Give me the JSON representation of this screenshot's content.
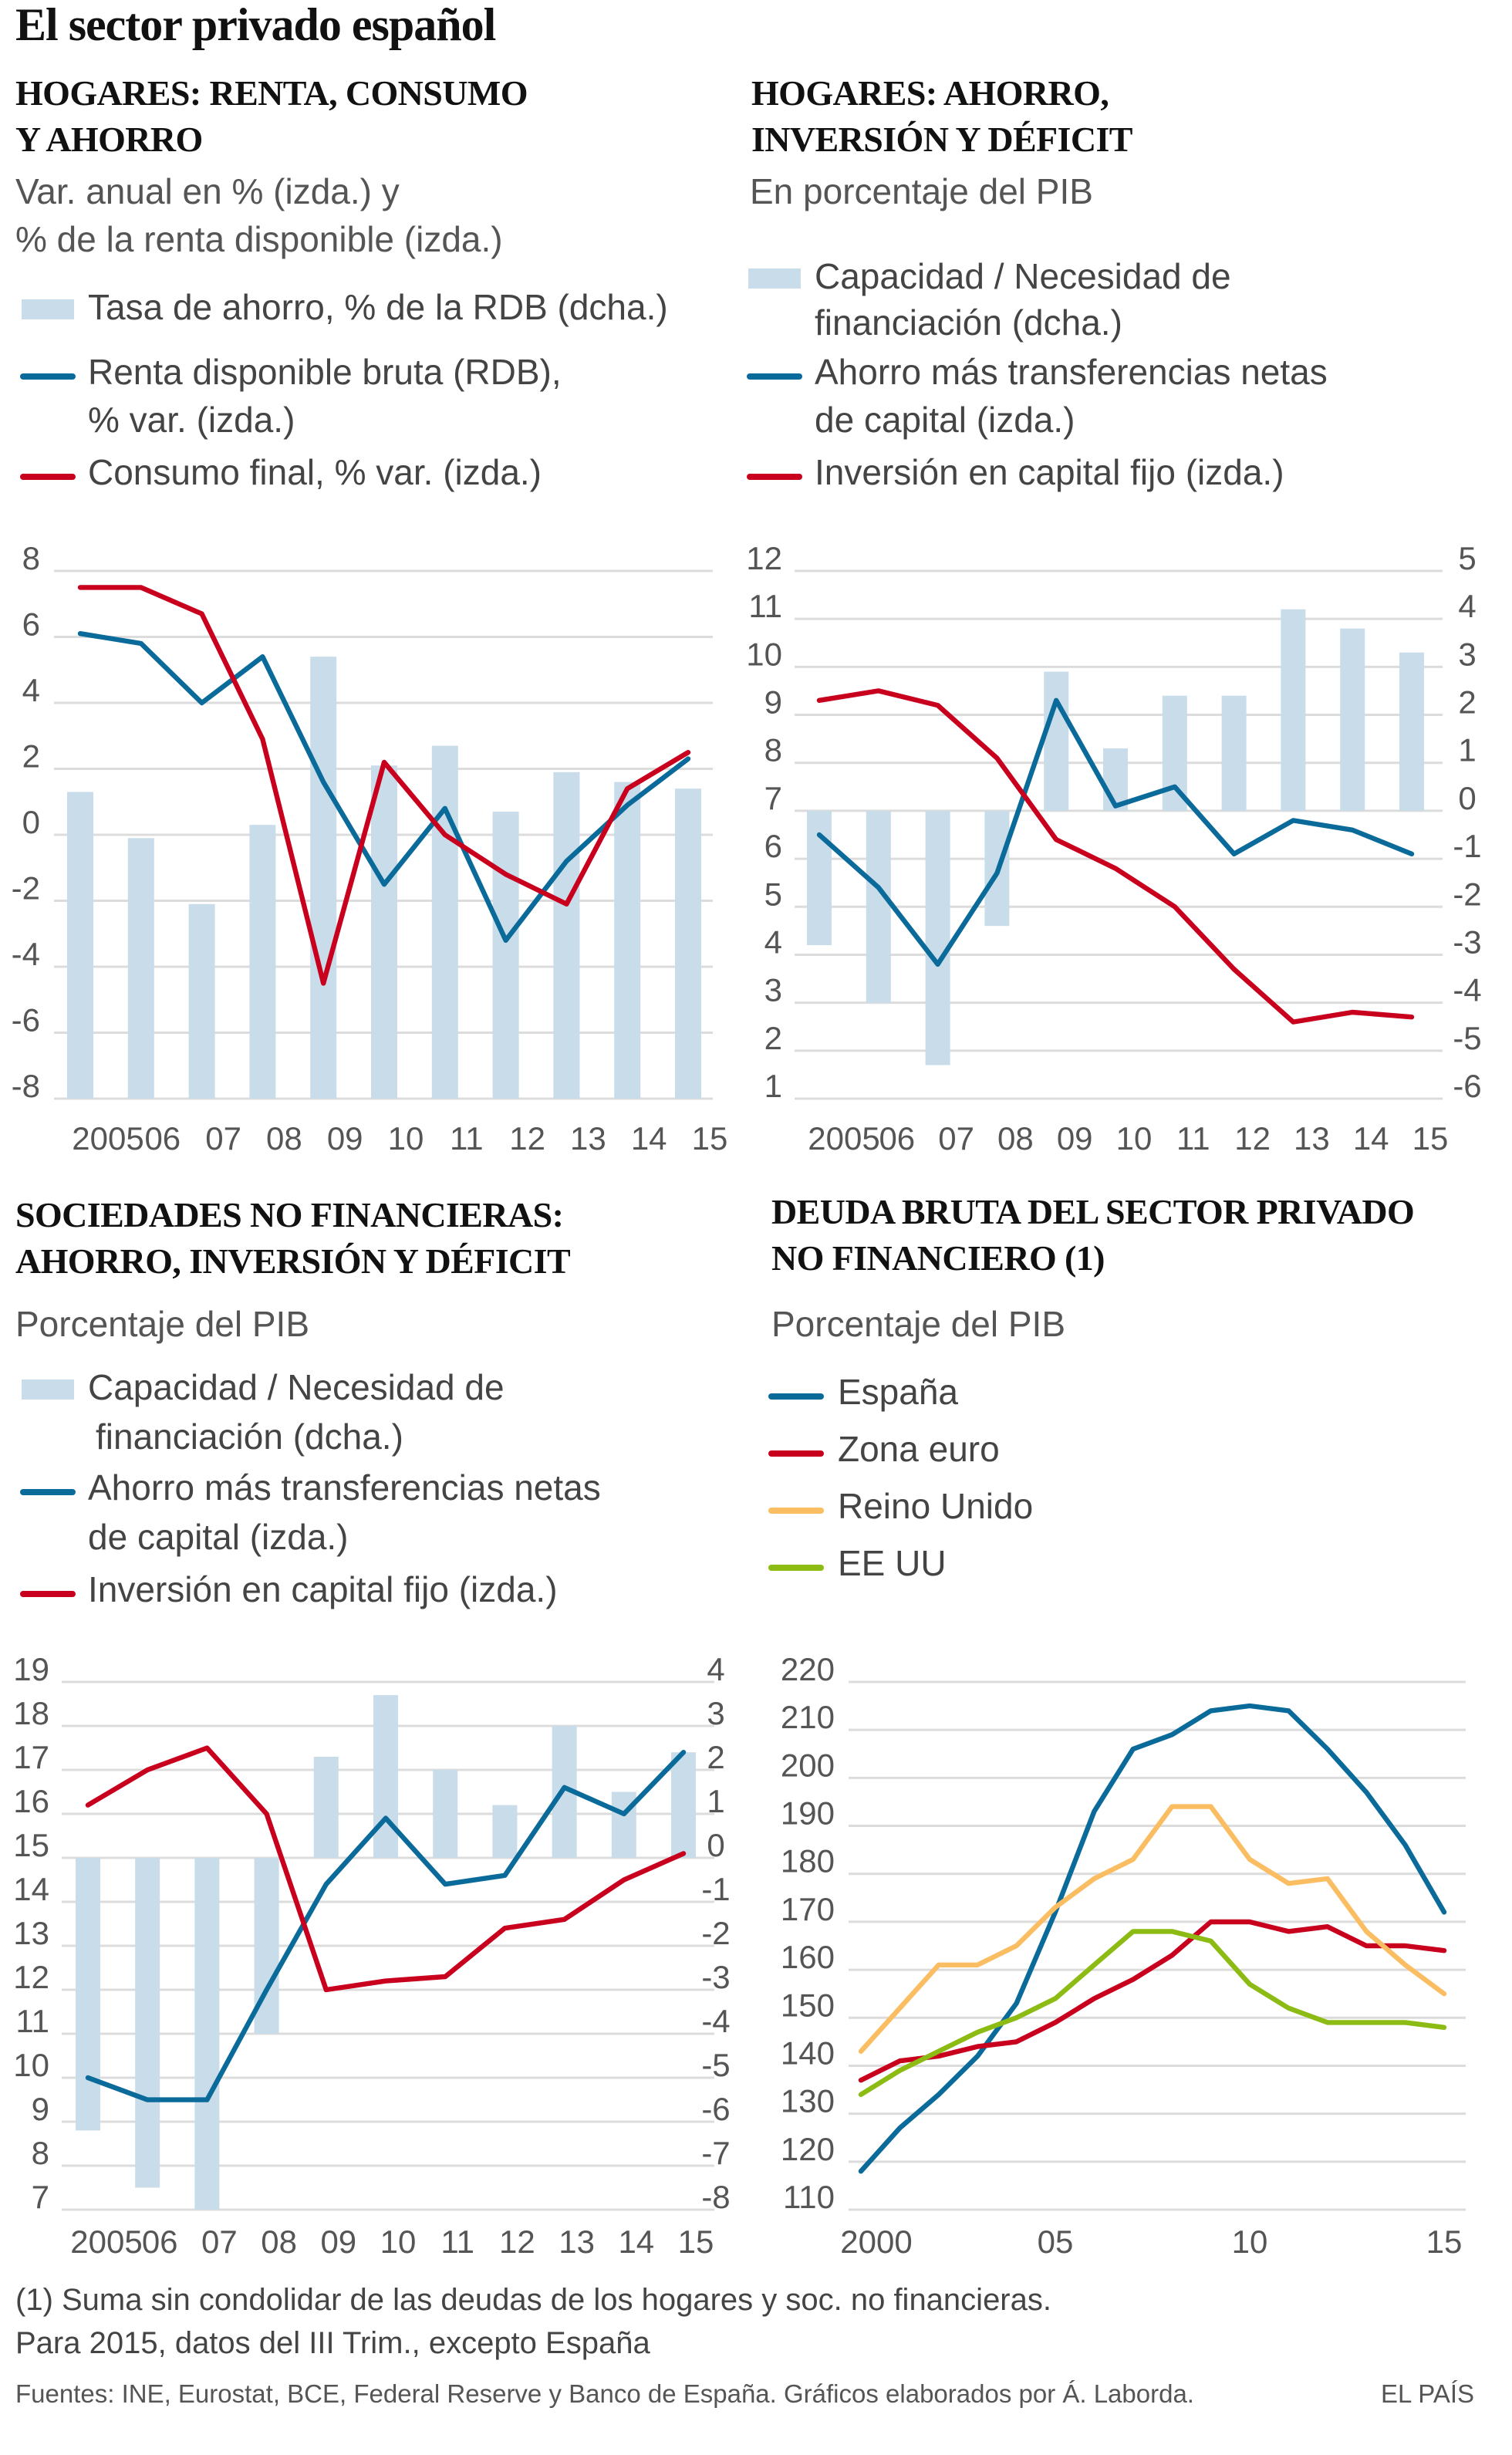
{
  "title": "El sector privado español",
  "colors": {
    "blue": "#0a6a9a",
    "red": "#c8001e",
    "bar": "#c9dcea",
    "orange": "#fbbd62",
    "green": "#8cbb14",
    "grid": "#dcdcdc"
  },
  "panels": [
    {
      "heading": [
        "HOGARES: RENTA, CONSUMO",
        "Y AHORRO"
      ],
      "subtitle": [
        "Var.  anual en % (izda.) y",
        "% de la renta disponible (izda.)"
      ],
      "legend": [
        {
          "type": "bar",
          "label": [
            "Tasa de ahorro, % de la RDB (dcha.)"
          ]
        },
        {
          "type": "blue",
          "label": [
            "Renta disponible bruta (RDB),",
            "% var. (izda.)"
          ]
        },
        {
          "type": "red",
          "label": [
            "Consumo final, % var. (izda.)"
          ]
        }
      ]
    },
    {
      "heading": [
        "HOGARES: AHORRO,",
        "INVERSIÓN Y DÉFICIT"
      ],
      "subtitle": [
        "En porcentaje del PIB"
      ],
      "legend": [
        {
          "type": "bar",
          "label": [
            "Capacidad / Necesidad de",
            "financiación (dcha.)"
          ]
        },
        {
          "type": "blue",
          "label": [
            "Ahorro más transferencias netas",
            "de capital (izda.)"
          ]
        },
        {
          "type": "red",
          "label": [
            "Inversión en capital fijo (izda.)"
          ]
        }
      ]
    },
    {
      "heading": [
        "SOCIEDADES NO FINANCIERAS:",
        "AHORRO, INVERSIÓN Y DÉFICIT"
      ],
      "subtitle": [
        "Porcentaje del PIB"
      ],
      "legend": [
        {
          "type": "bar",
          "label": [
            "Capacidad / Necesidad de",
            "financiación (dcha.)"
          ]
        },
        {
          "type": "blue",
          "label": [
            "Ahorro más transferencias netas",
            "de capital (izda.)"
          ]
        },
        {
          "type": "red",
          "label": [
            "Inversión en capital fijo (izda.)"
          ]
        }
      ]
    },
    {
      "heading": [
        "DEUDA BRUTA DEL SECTOR PRIVADO",
        "NO FINANCIERO (1)"
      ],
      "subtitle": [
        "Porcentaje del PIB"
      ],
      "legend": [
        {
          "type": "blue",
          "label": [
            "España"
          ]
        },
        {
          "type": "red",
          "label": [
            "Zona euro"
          ]
        },
        {
          "type": "orange",
          "label": [
            "Reino Unido"
          ]
        },
        {
          "type": "green",
          "label": [
            "EE UU"
          ]
        }
      ]
    }
  ],
  "chart_data": [
    {
      "type": "bar+line",
      "title": "HOGARES: RENTA, CONSUMO Y AHORRO",
      "categories": [
        "2005",
        "06",
        "07",
        "08",
        "09",
        "10",
        "11",
        "12",
        "13",
        "14",
        "15"
      ],
      "ylim": [
        -8,
        8
      ],
      "yticks": [
        "8",
        "6",
        "4",
        "2",
        "0",
        "-2",
        "-4",
        "-6",
        "-8"
      ],
      "bars": {
        "name": "Tasa de ahorro, % de la RDB (dcha.)",
        "values": [
          1.3,
          -0.1,
          -2.1,
          0.3,
          5.4,
          2.1,
          2.7,
          0.7,
          1.9,
          1.6,
          1.4
        ]
      },
      "series": [
        {
          "name": "Renta disponible bruta (RDB), % var. (izda.)",
          "color": "blue",
          "values": [
            6.1,
            5.8,
            4.0,
            5.4,
            1.6,
            -1.5,
            0.8,
            -3.2,
            -0.8,
            0.9,
            2.3
          ]
        },
        {
          "name": "Consumo final, % var. (izda.)",
          "color": "red",
          "values": [
            7.5,
            7.5,
            6.7,
            2.9,
            -4.5,
            2.2,
            0.0,
            -1.2,
            -2.1,
            1.4,
            2.5
          ]
        }
      ],
      "grid": true
    },
    {
      "type": "bar+line",
      "title": "HOGARES: AHORRO, INVERSIÓN Y DÉFICIT",
      "categories": [
        "2005",
        "06",
        "07",
        "08",
        "09",
        "10",
        "11",
        "12",
        "13",
        "14",
        "15"
      ],
      "ylim": [
        1,
        12
      ],
      "yticks": [
        "12",
        "11",
        "10",
        "9",
        "8",
        "7",
        "6",
        "5",
        "4",
        "3",
        "2",
        "1"
      ],
      "y2lim": [
        -6,
        5
      ],
      "y2ticks": [
        "5",
        "4",
        "3",
        "2",
        "1",
        "0",
        "-1",
        "-2",
        "-3",
        "-4",
        "-5",
        "-6"
      ],
      "bars": {
        "name": "Capacidad / Necesidad de financiación (dcha.)",
        "values": [
          -2.8,
          -4.0,
          -5.3,
          -2.4,
          2.9,
          1.3,
          2.4,
          2.4,
          4.2,
          3.8,
          3.3
        ]
      },
      "series": [
        {
          "name": "Ahorro más transferencias netas de capital (izda.)",
          "color": "blue",
          "values": [
            6.5,
            5.4,
            3.8,
            5.7,
            9.3,
            7.1,
            7.5,
            6.1,
            6.8,
            6.6,
            6.1
          ]
        },
        {
          "name": "Inversión en capital fijo (izda.)",
          "color": "red",
          "values": [
            9.3,
            9.5,
            9.2,
            8.1,
            6.4,
            5.8,
            5.0,
            3.7,
            2.6,
            2.8,
            2.7
          ]
        }
      ],
      "grid": true
    },
    {
      "type": "bar+line",
      "title": "SOCIEDADES NO FINANCIERAS: AHORRO, INVERSIÓN Y DÉFICIT",
      "categories": [
        "2005",
        "06",
        "07",
        "08",
        "09",
        "10",
        "11",
        "12",
        "13",
        "14",
        "15"
      ],
      "ylim": [
        7,
        19
      ],
      "yticks": [
        "19",
        "18",
        "17",
        "16",
        "15",
        "14",
        "13",
        "12",
        "11",
        "10",
        "9",
        "8",
        "7"
      ],
      "y2lim": [
        -8,
        4
      ],
      "y2ticks": [
        "4",
        "3",
        "2",
        "1",
        "0",
        "-1",
        "-2",
        "-3",
        "-4",
        "-5",
        "-6",
        "-7",
        "-8"
      ],
      "bars": {
        "name": "Capacidad / Necesidad de financiación (dcha.)",
        "values": [
          -6.2,
          -7.5,
          -8.0,
          -4.0,
          2.3,
          3.7,
          2.0,
          1.2,
          3.0,
          1.5,
          2.4
        ]
      },
      "series": [
        {
          "name": "Ahorro más transferencias netas de capital (izda.)",
          "color": "blue",
          "values": [
            10.0,
            9.5,
            9.5,
            12.0,
            14.4,
            15.9,
            14.4,
            14.6,
            16.6,
            16.0,
            17.4
          ]
        },
        {
          "name": "Inversión en capital fijo (izda.)",
          "color": "red",
          "values": [
            16.2,
            17.0,
            17.5,
            16.0,
            12.0,
            12.2,
            12.3,
            13.4,
            13.6,
            14.5,
            15.1
          ]
        }
      ],
      "grid": true
    },
    {
      "type": "line",
      "title": "DEUDA BRUTA DEL SECTOR PRIVADO NO FINANCIERO (1)",
      "x": [
        2000,
        2001,
        2002,
        2003,
        2004,
        2005,
        2006,
        2007,
        2008,
        2009,
        2010,
        2011,
        2012,
        2013,
        2014,
        2015
      ],
      "xticks": [
        "2000",
        "05",
        "10",
        "15"
      ],
      "ylim": [
        110,
        220
      ],
      "yticks": [
        "220",
        "210",
        "200",
        "190",
        "180",
        "170",
        "160",
        "150",
        "140",
        "130",
        "120",
        "110"
      ],
      "series": [
        {
          "name": "España",
          "color": "blue",
          "values": [
            118,
            127,
            134,
            142,
            153,
            172,
            193,
            206,
            209,
            214,
            215,
            214,
            206,
            197,
            186,
            172
          ]
        },
        {
          "name": "Zona euro",
          "color": "red",
          "values": [
            137,
            141,
            142,
            144,
            145,
            149,
            154,
            158,
            163,
            170,
            170,
            168,
            169,
            165,
            165,
            164
          ]
        },
        {
          "name": "Reino Unido",
          "color": "orange",
          "values": [
            143,
            152,
            161,
            161,
            165,
            173,
            179,
            183,
            194,
            194,
            183,
            178,
            179,
            168,
            161,
            155
          ]
        },
        {
          "name": "EE UU",
          "color": "green",
          "values": [
            134,
            139,
            143,
            147,
            150,
            154,
            161,
            168,
            168,
            166,
            157,
            152,
            149,
            149,
            149,
            148
          ]
        }
      ],
      "grid": true
    }
  ],
  "footnote": [
    "(1) Suma sin condolidar de las deudas de los hogares y soc. no financieras.",
    "Para 2015, datos del III Trim., excepto España"
  ],
  "sources": "Fuentes: INE, Eurostat, BCE, Federal Reserve y Banco de España.  Gráficos elaborados por Á. Laborda.",
  "brand": "EL PAÍS"
}
